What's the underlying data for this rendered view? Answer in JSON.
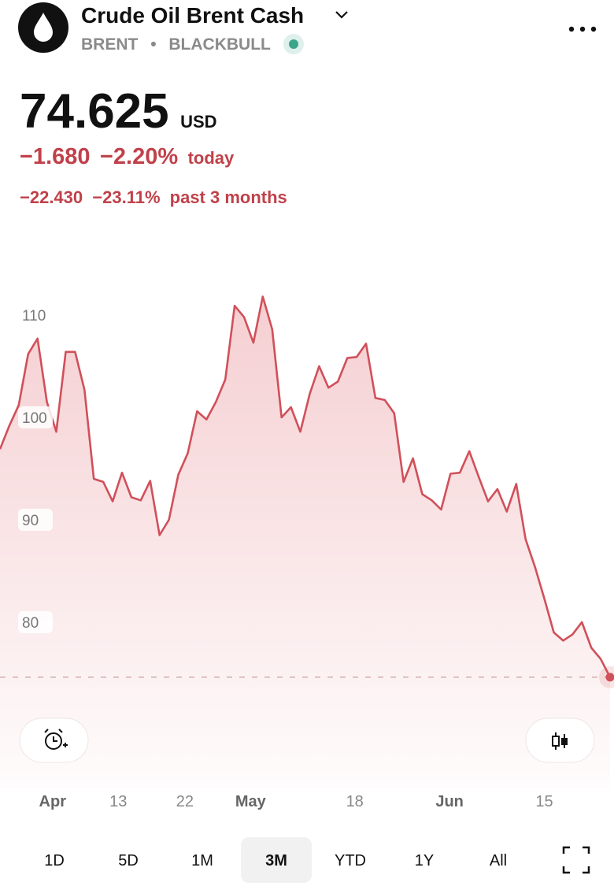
{
  "header": {
    "title": "Crude Oil Brent Cash",
    "symbol": "BRENT",
    "exchange": "BLACKBULL"
  },
  "quote": {
    "price": "74.625",
    "currency": "USD",
    "change_today": "−1.680",
    "change_today_pct": "−2.20%",
    "today_label": "today",
    "change_period": "−22.430",
    "change_period_pct": "−23.11%",
    "period_label": "past 3 months"
  },
  "chart_data": {
    "type": "area",
    "color": "#d0505a",
    "values": [
      96.9,
      99.2,
      101.2,
      106.2,
      107.7,
      101.5,
      98.6,
      106.4,
      106.4,
      102.7,
      94.0,
      93.7,
      91.8,
      94.6,
      92.2,
      91.9,
      93.8,
      88.5,
      90.0,
      94.4,
      96.5,
      100.6,
      99.8,
      101.5,
      103.7,
      110.9,
      109.8,
      107.3,
      111.8,
      108.6,
      100.0,
      101.0,
      98.6,
      102.3,
      105.0,
      102.9,
      103.5,
      105.8,
      105.9,
      107.2,
      101.9,
      101.7,
      100.4,
      93.7,
      96.0,
      92.5,
      91.9,
      91.0,
      94.5,
      94.6,
      96.7,
      94.2,
      91.8,
      93.0,
      90.8,
      93.5,
      88.1,
      85.4,
      82.3,
      79.0,
      78.2,
      78.8,
      80.0,
      77.5,
      76.4,
      74.625
    ],
    "xlim": [
      0,
      65
    ],
    "xticks": [
      {
        "value": 5.6,
        "label": "Apr"
      },
      {
        "value": 12.6,
        "label": "13"
      },
      {
        "value": 19.7,
        "label": "22"
      },
      {
        "value": 26.7,
        "label": "May"
      },
      {
        "value": 37.8,
        "label": "18"
      },
      {
        "value": 47.9,
        "label": "Jun"
      },
      {
        "value": 58,
        "label": "15"
      }
    ],
    "ylim": [
      65,
      115
    ],
    "yticks": [
      80,
      90,
      100,
      110
    ]
  },
  "ranges": {
    "options": [
      "1D",
      "5D",
      "1M",
      "3M",
      "YTD",
      "1Y",
      "All"
    ],
    "selected": 3
  }
}
